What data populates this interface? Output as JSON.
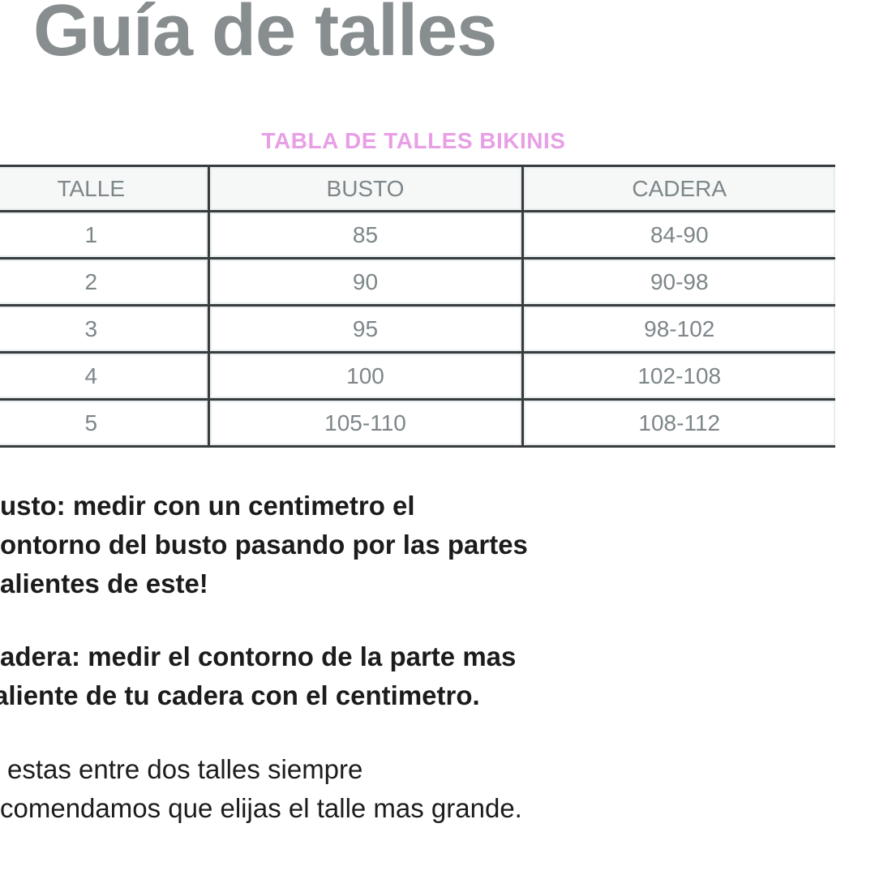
{
  "page": {
    "title": "Guía de talles",
    "table_title": "TABLA DE TALLES BIKINIS"
  },
  "size_table": {
    "headers": [
      "TALLE",
      "BUSTO",
      "CADERA"
    ],
    "rows": [
      [
        "1",
        "85",
        "84-90"
      ],
      [
        "2",
        "90",
        "90-98"
      ],
      [
        "3",
        "95",
        "98-102"
      ],
      [
        "4",
        "100",
        "102-108"
      ],
      [
        "5",
        "105-110",
        "108-112"
      ]
    ]
  },
  "notes": {
    "busto_lines": [
      "usto: medir con un centimetro el",
      "ontorno del busto pasando por las partes",
      "alientes de este!"
    ],
    "cadera_lines": [
      "adera: medir el contorno de la parte mas",
      "aliente de tu cadera con el centimetro."
    ],
    "advice_lines": [
      "estas entre dos talles siempre",
      "comendamos que elijas el talle mas grande."
    ]
  },
  "colors": {
    "title_gray": "#888e8f",
    "heading_pink": "#e89fe5",
    "table_text_gray": "#7d8689",
    "table_border_dark": "#383c3d",
    "table_border_light": "#e7edef",
    "header_cell_bg": "#f6f7f7",
    "body_text": "#1c1c1c"
  }
}
